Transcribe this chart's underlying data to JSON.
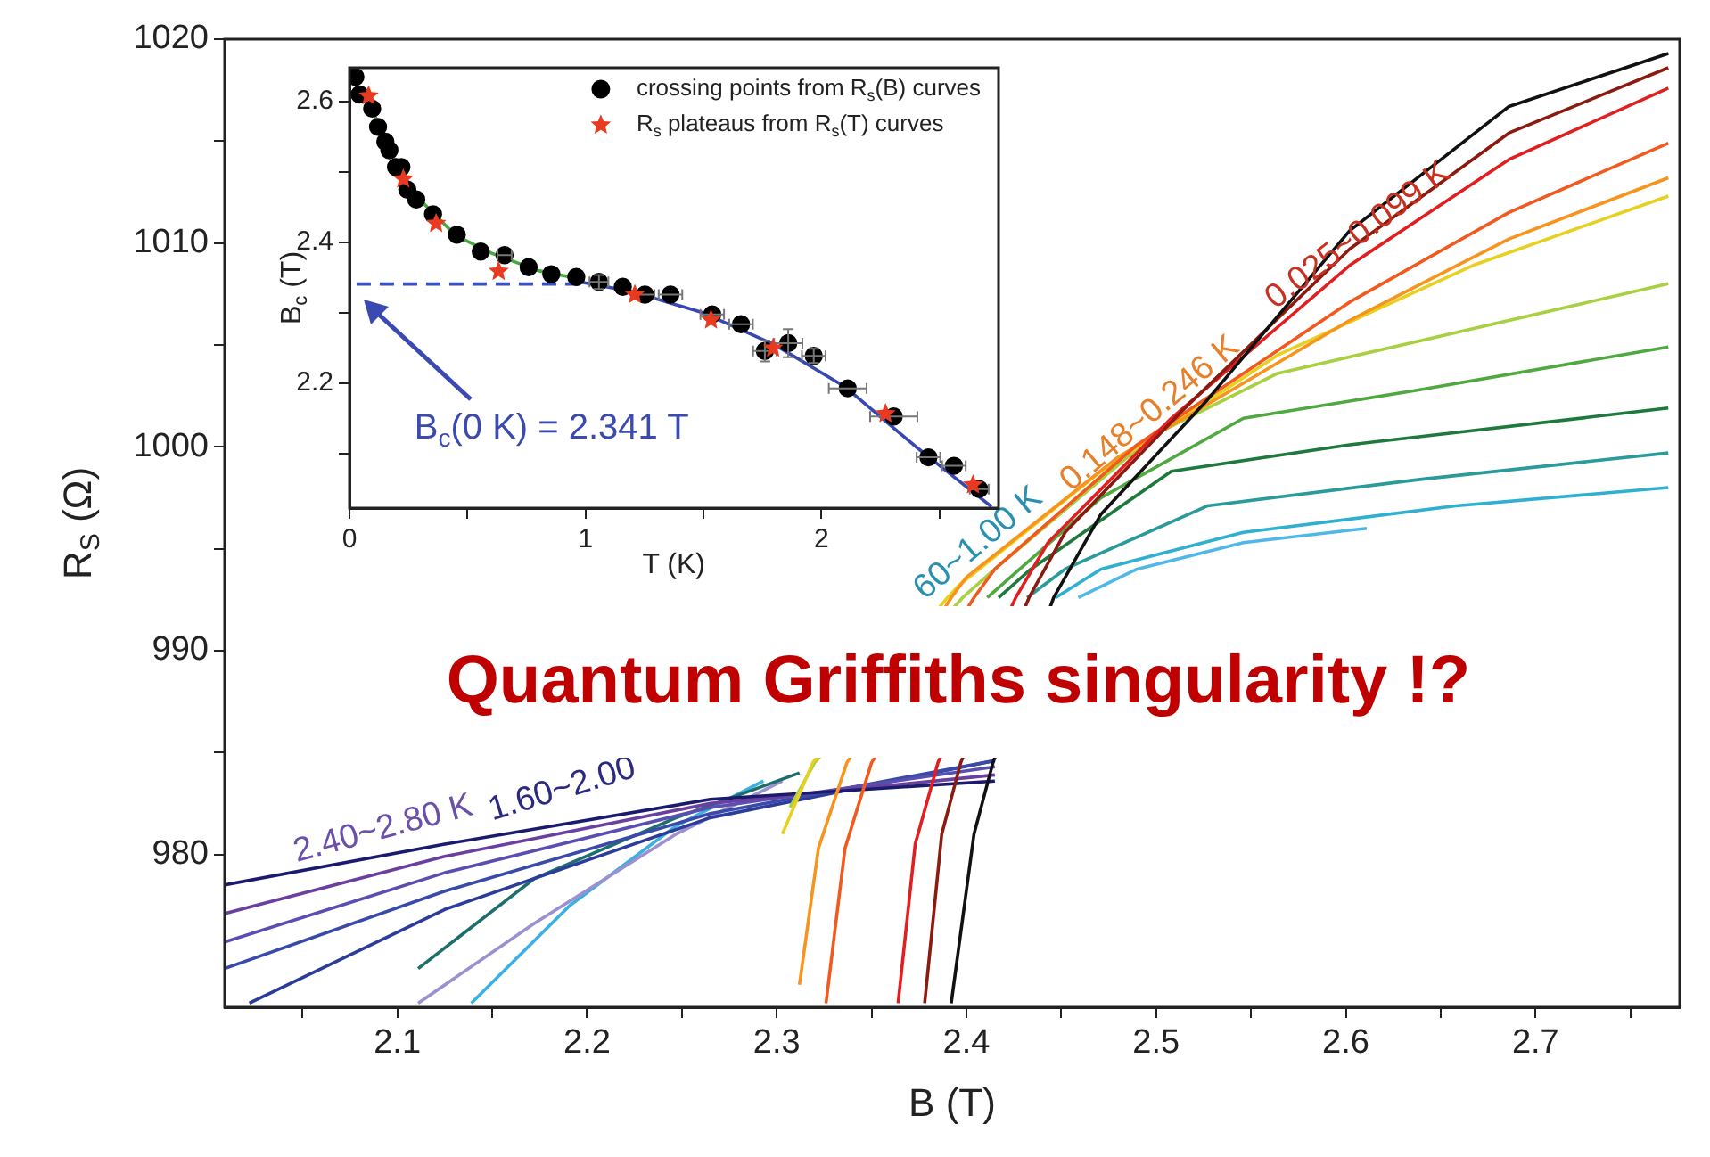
{
  "chart_data": [
    {
      "type": "line",
      "title": "Quantum Griffiths singularity !?",
      "xlabel": "B (T)",
      "ylabel": "R$_{S}$ (Ω)",
      "xlim": [
        2.009,
        2.776
      ],
      "ylim": [
        972.5,
        1020
      ],
      "xticks": [
        {
          "value": 2.05,
          "label": null
        },
        2.1,
        {
          "value": 2.15,
          "label": null
        },
        2.2,
        {
          "value": 2.25,
          "label": null
        },
        2.3,
        {
          "value": 2.35,
          "label": null
        },
        2.4,
        {
          "value": 2.45,
          "label": null
        },
        2.5,
        {
          "value": 2.55,
          "label": null
        },
        2.6,
        {
          "value": 2.65,
          "label": null
        },
        2.7,
        {
          "value": 2.75,
          "label": null
        }
      ],
      "yticks": [
        980,
        {
          "value": 985,
          "label": null
        },
        990,
        {
          "value": 995,
          "label": null
        },
        1000,
        {
          "value": 1005,
          "label": null
        },
        1010,
        {
          "value": 1015,
          "label": null
        },
        1020
      ],
      "legend": false,
      "marker": "none",
      "line_style": "solid",
      "annotations": [
        "2.40~2.80 K",
        "1.60~2.00",
        "60~1.00 K",
        "0.148~0.246 K",
        "0.025~0.099 K"
      ],
      "series": [
        {
          "color": "#111111",
          "x": [
            2.392,
            2.404,
            2.414,
            2.446,
            2.471,
            2.527,
            2.602,
            2.686,
            2.77
          ],
          "values": [
            972.7,
            981.0,
            984.5,
            992.6,
            996.7,
            1002.3,
            1010.6,
            1016.7,
            1019.3
          ]
        },
        {
          "color": "#8b1a10",
          "x": [
            2.378,
            2.387,
            2.397,
            2.433,
            2.452,
            2.513,
            2.602,
            2.686,
            2.77
          ],
          "values": [
            972.7,
            981.0,
            984.5,
            992.6,
            995.8,
            1001.7,
            1009.7,
            1015.4,
            1018.6
          ]
        },
        {
          "color": "#e02020",
          "x": [
            2.364,
            2.373,
            2.385,
            2.426,
            2.443,
            2.508,
            2.602,
            2.686,
            2.77
          ],
          "values": [
            972.7,
            980.5,
            984.5,
            992.6,
            995.3,
            1001.4,
            1008.9,
            1014.1,
            1017.6
          ]
        },
        {
          "color": "#f05a1e",
          "x": [
            2.326,
            2.336,
            2.35,
            2.404,
            2.415,
            2.49,
            2.602,
            2.686,
            2.77
          ],
          "values": [
            972.7,
            980.3,
            984.5,
            992.6,
            994.0,
            1000.1,
            1007.1,
            1011.5,
            1014.9
          ]
        },
        {
          "color": "#f7941d",
          "x": [
            2.312,
            2.322,
            2.337,
            2.392,
            2.4,
            2.48,
            2.602,
            2.686,
            2.77
          ],
          "values": [
            973.6,
            980.3,
            984.5,
            992.6,
            993.6,
            999.5,
            1006.2,
            1010.2,
            1013.2
          ]
        },
        {
          "color": "#e8d020",
          "x": [
            2.303,
            2.319,
            2.39,
            2.396,
            2.471,
            2.564,
            2.667,
            2.77
          ],
          "values": [
            981.0,
            984.5,
            992.6,
            993.2,
            998.8,
            1004.5,
            1008.9,
            1012.3
          ]
        },
        {
          "color": "#a8d040",
          "x": [
            2.307,
            2.32,
            2.398,
            2.415,
            2.499,
            2.564,
            2.667,
            2.77
          ],
          "values": [
            982.3,
            984.5,
            992.6,
            994.0,
            1000.6,
            1003.6,
            1005.8,
            1008.0
          ]
        },
        {
          "color": "#50a840",
          "x": [
            2.411,
            2.471,
            2.546,
            2.639,
            2.77
          ],
          "values": [
            992.6,
            997.5,
            1001.4,
            1002.8,
            1004.9
          ]
        },
        {
          "color": "#1e7a3c",
          "x": [
            2.417,
            2.434,
            2.508,
            2.602,
            2.77
          ],
          "values": [
            992.6,
            994.0,
            998.8,
            1000.1,
            1001.9
          ]
        },
        {
          "color": "#2a9a9a",
          "x": [
            2.432,
            2.452,
            2.527,
            2.639,
            2.77
          ],
          "values": [
            992.6,
            994.0,
            997.1,
            998.4,
            999.7
          ]
        },
        {
          "color": "#30b0d0",
          "x": [
            2.447,
            2.471,
            2.546,
            2.658,
            2.77
          ],
          "values": [
            992.6,
            994.0,
            995.8,
            997.1,
            998.0
          ]
        },
        {
          "color": "#50b8e8",
          "x": [
            2.459,
            2.49,
            2.546,
            2.611
          ],
          "values": [
            992.6,
            994.0,
            995.3,
            996.0
          ]
        },
        {
          "color": "#1a1a6e",
          "x": [
            2.009,
            2.125,
            2.265,
            2.415
          ],
          "values": [
            978.5,
            980.5,
            982.7,
            983.6
          ]
        },
        {
          "color": "#6a3fa0",
          "x": [
            2.009,
            2.125,
            2.265,
            2.415
          ],
          "values": [
            977.1,
            979.9,
            982.5,
            983.9
          ]
        },
        {
          "color": "#5a4fb0",
          "x": [
            2.009,
            2.125,
            2.265,
            2.415
          ],
          "values": [
            975.7,
            979.1,
            982.3,
            984.3
          ]
        },
        {
          "color": "#3a4aa8",
          "x": [
            2.009,
            2.125,
            2.265,
            2.415
          ],
          "values": [
            974.4,
            978.2,
            982.0,
            984.6
          ]
        },
        {
          "color": "#2c3c9a",
          "x": [
            2.022,
            2.125,
            2.265,
            2.415
          ],
          "values": [
            972.7,
            977.3,
            981.8,
            984.6
          ]
        },
        {
          "color": "#1e6e6e",
          "x": [
            2.111,
            2.172,
            2.247,
            2.312
          ],
          "values": [
            974.4,
            978.8,
            981.8,
            984.0
          ]
        },
        {
          "color": "#9c90d0",
          "x": [
            2.111,
            2.172,
            2.247,
            2.303
          ],
          "values": [
            972.7,
            976.6,
            981.0,
            983.6
          ]
        },
        {
          "color": "#3cb0e0",
          "x": [
            2.139,
            2.191,
            2.247,
            2.293
          ],
          "values": [
            972.7,
            977.5,
            981.4,
            983.6
          ]
        }
      ]
    },
    {
      "type": "scatter",
      "xlabel": "T (K)",
      "ylabel": "B$_{c}$ (T)",
      "xlim": [
        0,
        2.75
      ],
      "ylim": [
        2.023,
        2.648
      ],
      "xticks": [
        0,
        {
          "value": 0.5,
          "label": null
        },
        1,
        {
          "value": 1.5,
          "label": null
        },
        2,
        {
          "value": 2.5,
          "label": null
        }
      ],
      "yticks": [
        {
          "value": 2.1,
          "label": null
        },
        2.2,
        {
          "value": 2.3,
          "label": null
        },
        2.4,
        {
          "value": 2.5,
          "label": null
        },
        2.6
      ],
      "legend": "top right",
      "marker": "circle",
      "annotations": [
        "B$_{c}$(0 K) = 2.341 T"
      ],
      "series": [
        {
          "name": "crossing points from R$_{s}$(B) curves",
          "color": "#000000",
          "x": [
            0.025,
            0.043,
            0.096,
            0.121,
            0.152,
            0.169,
            0.197,
            0.22,
            0.245,
            0.283,
            0.354,
            0.455,
            0.556,
            0.657,
            0.759,
            0.855,
            0.961,
            1.057,
            1.158,
            1.252,
            1.36,
            1.537,
            1.659,
            1.76,
            1.859,
            1.967,
            2.111,
            2.306,
            2.453,
            2.561,
            2.668
          ],
          "values": [
            2.635,
            2.61,
            2.59,
            2.564,
            2.543,
            2.531,
            2.507,
            2.507,
            2.475,
            2.461,
            2.44,
            2.411,
            2.387,
            2.382,
            2.365,
            2.355,
            2.351,
            2.344,
            2.337,
            2.326,
            2.326,
            2.298,
            2.284,
            2.246,
            2.257,
            2.239,
            2.193,
            2.153,
            2.095,
            2.083,
            2.05
          ],
          "xerrors": [
            null,
            null,
            null,
            null,
            null,
            null,
            null,
            null,
            null,
            null,
            null,
            null,
            null,
            0.03,
            null,
            null,
            null,
            0.04,
            null,
            0.04,
            0.05,
            0.05,
            0.05,
            0.05,
            0.06,
            0.05,
            0.08,
            0.1,
            0.05,
            0.05,
            0.04
          ],
          "errors": [
            null,
            null,
            null,
            null,
            null,
            null,
            null,
            null,
            null,
            null,
            null,
            null,
            null,
            null,
            null,
            null,
            null,
            0.01,
            null,
            null,
            null,
            null,
            null,
            0.015,
            0.02,
            0.01,
            null,
            null,
            null,
            null,
            null
          ]
        },
        {
          "name": "R$_{s}$ plateaus from R$_{s}$(T) curves",
          "color": "#e83a20",
          "marker": "star",
          "x": [
            0.081,
            0.228,
            0.367,
            0.632,
            1.209,
            1.532,
            1.795,
            2.271,
            2.642
          ],
          "values": [
            2.608,
            2.49,
            2.427,
            2.359,
            2.326,
            2.29,
            2.25,
            2.157,
            2.056
          ]
        },
        {
          "type": "line",
          "marker": "none",
          "color": "#3848b0",
          "x": [
            0.93,
            1.2,
            1.5,
            1.8,
            2.1,
            2.4,
            2.72
          ],
          "values": [
            2.347,
            2.33,
            2.3,
            2.255,
            2.195,
            2.11,
            2.025
          ]
        },
        {
          "type": "line",
          "marker": "none",
          "color": "#48a840",
          "x": [
            0.1,
            0.2,
            0.3,
            0.45,
            0.6,
            0.8,
            0.95
          ],
          "values": [
            2.585,
            2.51,
            2.46,
            2.41,
            2.385,
            2.36,
            2.35
          ]
        },
        {
          "type": "line",
          "marker": "none",
          "line_style": "dashed",
          "color": "#3a50c0",
          "x": [
            0.03,
            1.0
          ],
          "values": [
            2.341,
            2.341
          ]
        }
      ]
    }
  ]
}
